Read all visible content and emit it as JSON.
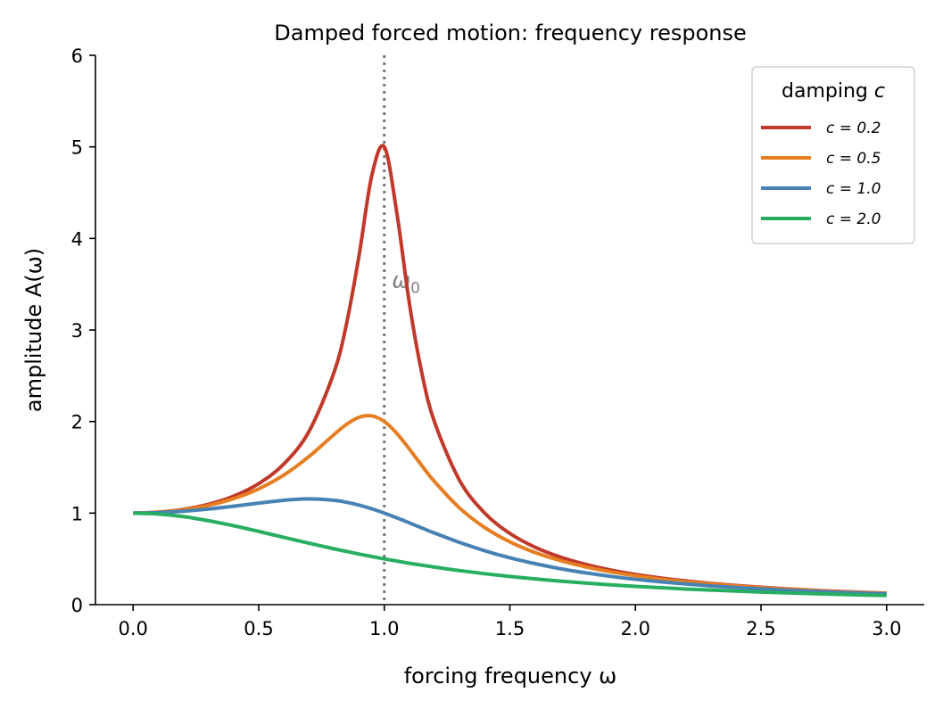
{
  "chart_data": {
    "type": "line",
    "title": "Damped forced motion: frequency response",
    "xlabel": "forcing frequency ω",
    "ylabel": "amplitude A(ω)",
    "xlim": [
      -0.15,
      3.15
    ],
    "ylim": [
      0,
      6
    ],
    "xticks": [
      "0.0",
      "0.5",
      "1.0",
      "1.5",
      "2.0",
      "2.5",
      "3.0"
    ],
    "yticks": [
      "0",
      "1",
      "2",
      "3",
      "4",
      "5",
      "6"
    ],
    "grid": false,
    "legend": {
      "title": "damping c",
      "placement": "top-right"
    },
    "annotation": {
      "text": "ω0",
      "x": 1.03,
      "y": 3.5,
      "color": "#808080"
    },
    "vline": {
      "x": 1.0,
      "style": "dotted",
      "color": "#777777"
    },
    "x": [
      0,
      0.1,
      0.2,
      0.3,
      0.4,
      0.5,
      0.6,
      0.7,
      0.8,
      0.85,
      0.9,
      0.95,
      1.0,
      1.05,
      1.1,
      1.15,
      1.2,
      1.3,
      1.4,
      1.5,
      1.6,
      1.7,
      1.8,
      1.9,
      2.0,
      2.1,
      2.2,
      2.3,
      2.4,
      2.5,
      2.6,
      2.7,
      2.8,
      2.9,
      3.0
    ],
    "series": [
      {
        "name": "c = 0.2",
        "color": "#c0392b",
        "values": [
          1,
          1.01,
          1.041,
          1.097,
          1.185,
          1.322,
          1.536,
          1.891,
          2.538,
          3.073,
          3.821,
          4.683,
          5.0,
          4.279,
          3.288,
          2.524,
          1.995,
          1.356,
          1.0,
          0.778,
          0.628,
          0.521,
          0.441,
          0.379,
          0.33,
          0.291,
          0.259,
          0.232,
          0.209,
          0.19,
          0.173,
          0.158,
          0.146,
          0.135,
          0.125
        ]
      },
      {
        "name": "c = 0.5",
        "color": "#e67e22",
        "values": [
          1,
          1.009,
          1.036,
          1.084,
          1.158,
          1.265,
          1.415,
          1.617,
          1.858,
          1.97,
          2.047,
          2.062,
          2.0,
          1.87,
          1.699,
          1.517,
          1.344,
          1.055,
          0.842,
          0.686,
          0.57,
          0.483,
          0.414,
          0.36,
          0.316,
          0.28,
          0.25,
          0.225,
          0.204,
          0.185,
          0.169,
          0.155,
          0.143,
          0.132,
          0.123
        ]
      },
      {
        "name": "c = 1.0",
        "color": "#4682b4",
        "values": [
          1,
          1.005,
          1.02,
          1.044,
          1.075,
          1.109,
          1.14,
          1.155,
          1.14,
          1.118,
          1.087,
          1.047,
          1.0,
          0.948,
          0.893,
          0.837,
          0.782,
          0.679,
          0.589,
          0.512,
          0.448,
          0.393,
          0.348,
          0.31,
          0.277,
          0.25,
          0.226,
          0.205,
          0.188,
          0.172,
          0.158,
          0.146,
          0.135,
          0.126,
          0.117
        ]
      },
      {
        "name": "c = 2.0",
        "color": "#27ae60",
        "values": [
          1,
          0.99,
          0.962,
          0.917,
          0.862,
          0.8,
          0.735,
          0.671,
          0.61,
          0.581,
          0.552,
          0.526,
          0.5,
          0.476,
          0.452,
          0.431,
          0.41,
          0.372,
          0.338,
          0.308,
          0.281,
          0.257,
          0.236,
          0.217,
          0.2,
          0.185,
          0.171,
          0.159,
          0.148,
          0.138,
          0.129,
          0.121,
          0.113,
          0.106,
          0.1
        ]
      }
    ]
  }
}
